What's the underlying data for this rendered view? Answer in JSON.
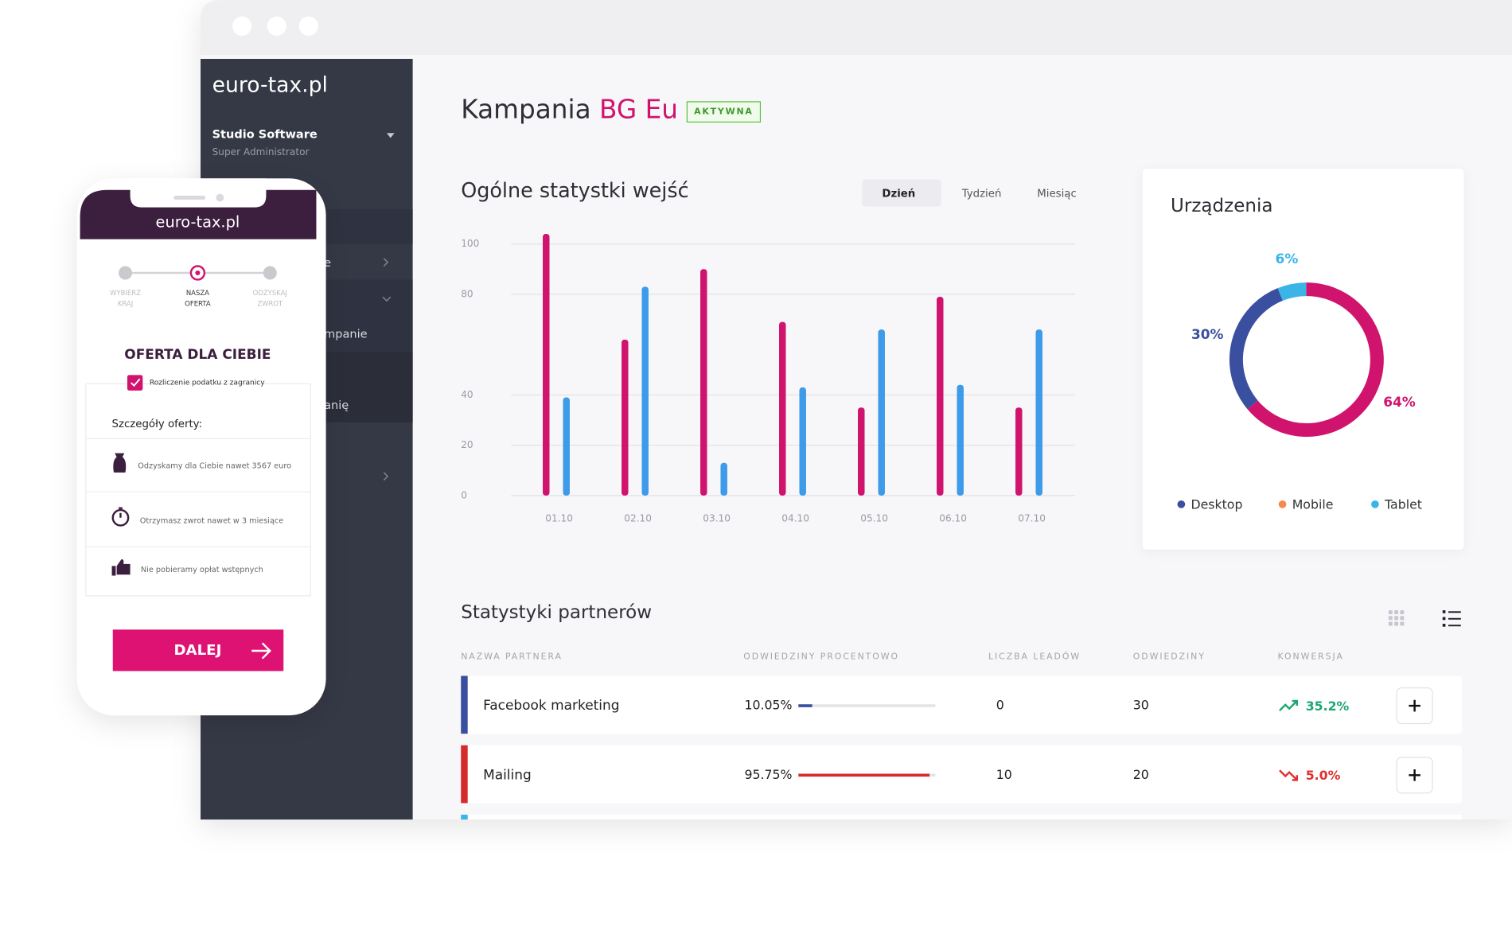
{
  "sidebar": {
    "logo": "euro-tax.pl",
    "user": "Studio Software",
    "role": "Super Administrator",
    "menu": [
      "e",
      "mpanie",
      "anię"
    ]
  },
  "page": {
    "title": "Kampania",
    "campaign": "BG Eu",
    "status": "AKTYWNA"
  },
  "chart_data": [
    {
      "type": "bar",
      "title": "Ogólne statystki wejść",
      "tabs": [
        "Dzień",
        "Tydzień",
        "Miesiąc"
      ],
      "active_tab": 0,
      "categories": [
        "01.10",
        "02.10",
        "03.10",
        "04.10",
        "05.10",
        "06.10",
        "07.10"
      ],
      "series": [
        {
          "color": "#d0146e",
          "values": [
            104,
            62,
            90,
            69,
            35,
            79,
            35
          ]
        },
        {
          "color": "#3d9be9",
          "values": [
            39,
            83,
            13,
            43,
            66,
            44,
            66
          ]
        }
      ],
      "ylim": [
        0,
        105
      ],
      "yticks": [
        0,
        20,
        40,
        80,
        100
      ],
      "grid": true
    },
    {
      "type": "donut",
      "title": "Urządzenia",
      "categories": [
        "Desktop",
        "Mobile",
        "Tablet"
      ],
      "values": [
        30,
        64,
        6
      ],
      "value_labels": [
        "30%",
        "64%",
        "6%"
      ],
      "colors": [
        "#3a4fa0",
        "#d0146e",
        "#3bb4e8"
      ],
      "legend_colors": [
        "#3a4fa0",
        "#f58a4b",
        "#3bb4e8"
      ]
    }
  ],
  "partners": {
    "title": "Statystyki partnerów",
    "columns": [
      "NAZWA PARTNERA",
      "ODWIEDZINY PROCENTOWO",
      "LICZBA LEADÓW",
      "ODWIEDZINY",
      "KONWERSJA"
    ],
    "rows": [
      {
        "name": "Facebook marketing",
        "share": 10.05,
        "share_label": "10.05%",
        "leads": 0,
        "visits": 30,
        "conversion": 35.2,
        "conversion_label": "35.2%",
        "trend": "up",
        "color": "#3a4fa0",
        "bar_color": "#3a4fa0",
        "trend_color": "#1ea672"
      },
      {
        "name": "Mailing",
        "share": 95.75,
        "share_label": "95.75%",
        "leads": 10,
        "visits": 20,
        "conversion": 5.0,
        "conversion_label": "5.0%",
        "trend": "down",
        "color": "#d62b2b",
        "bar_color": "#d62b2b",
        "trend_color": "#e0302f"
      }
    ]
  },
  "phone": {
    "logo": "euro-tax.pl",
    "steps": [
      [
        "WYBIERZ",
        "KRAJ"
      ],
      [
        "NASZA",
        "OFERTA"
      ],
      [
        "ODZYSKAJ",
        "ZWROT"
      ]
    ],
    "active_step": 1,
    "heading": "OFERTA DLA CIEBIE",
    "checkbox": "Rozliczenie podatku z zagranicy",
    "details_title": "Szczegóły oferty:",
    "details": [
      "Odzyskamy dla Ciebie nawet 3567 euro",
      "Otrzymasz zwrot nawet w 3 miesiące",
      "Nie pobieramy opłat wstępnych"
    ],
    "button": "DALEJ"
  }
}
